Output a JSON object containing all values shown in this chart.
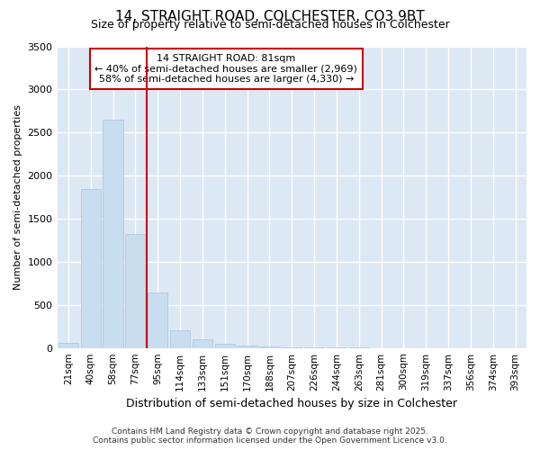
{
  "title": "14, STRAIGHT ROAD, COLCHESTER, CO3 9BT",
  "subtitle": "Size of property relative to semi-detached houses in Colchester",
  "xlabel": "Distribution of semi-detached houses by size in Colchester",
  "ylabel": "Number of semi-detached properties",
  "categories": [
    "21sqm",
    "40sqm",
    "58sqm",
    "77sqm",
    "95sqm",
    "114sqm",
    "133sqm",
    "151sqm",
    "170sqm",
    "188sqm",
    "207sqm",
    "226sqm",
    "244sqm",
    "263sqm",
    "281sqm",
    "300sqm",
    "319sqm",
    "337sqm",
    "356sqm",
    "374sqm",
    "393sqm"
  ],
  "bar_values": [
    60,
    1850,
    2650,
    1320,
    640,
    210,
    100,
    50,
    30,
    20,
    10,
    5,
    5,
    5,
    0,
    0,
    0,
    0,
    0,
    0,
    0
  ],
  "bar_color": "#c8ddf0",
  "bar_edge_color": "#a8c4e0",
  "vline_x_index": 3.5,
  "vline_color": "#cc0000",
  "annotation_text_line1": "14 STRAIGHT ROAD: 81sqm",
  "annotation_text_line2": "← 40% of semi-detached houses are smaller (2,969)",
  "annotation_text_line3": "58% of semi-detached houses are larger (4,330) →",
  "annotation_box_color": "#ffffff",
  "annotation_border_color": "#cc0000",
  "ylim": [
    0,
    3500
  ],
  "yticks": [
    0,
    500,
    1000,
    1500,
    2000,
    2500,
    3000,
    3500
  ],
  "figure_bg": "#ffffff",
  "plot_bg": "#dde8f5",
  "grid_color": "#ffffff",
  "footer_line1": "Contains HM Land Registry data © Crown copyright and database right 2025.",
  "footer_line2": "Contains public sector information licensed under the Open Government Licence v3.0."
}
